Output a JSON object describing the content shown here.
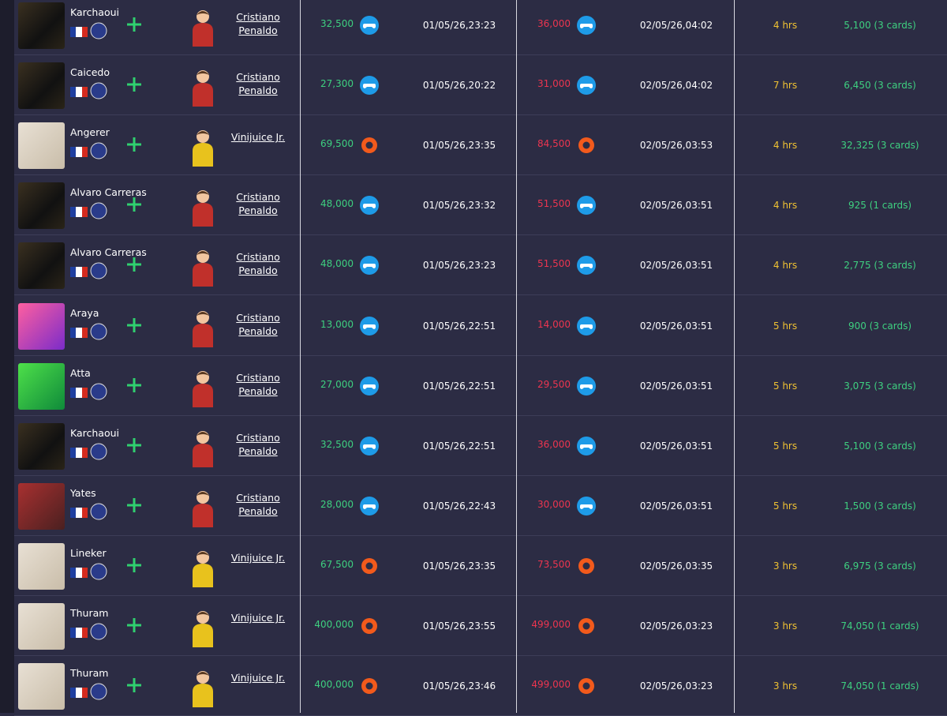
{
  "table": {
    "rows": [
      {
        "player": "Karchaoui",
        "owner": "Cristiano Penaldo",
        "shirt": "#c0302b",
        "buy_price": "32,500",
        "buy_icon": "controller",
        "buy_date": "01/05/26,23:23",
        "sell_price": "36,000",
        "sell_icon": "controller",
        "sell_date": "02/05/26,04:02",
        "time": "4 hrs",
        "profit": "5,100 (3 cards)"
      },
      {
        "player": "Caicedo",
        "owner": "Cristiano Penaldo",
        "shirt": "#c0302b",
        "buy_price": "27,300",
        "buy_icon": "controller",
        "buy_date": "01/05/26,20:22",
        "sell_price": "31,000",
        "sell_icon": "controller",
        "sell_date": "02/05/26,04:02",
        "time": "7 hrs",
        "profit": "6,450 (3 cards)"
      },
      {
        "player": "Angerer",
        "owner": "Vinijuice Jr.",
        "shirt": "#e8c21d",
        "buy_price": "69,500",
        "buy_icon": "origin",
        "buy_date": "01/05/26,23:35",
        "sell_price": "84,500",
        "sell_icon": "origin",
        "sell_date": "02/05/26,03:53",
        "time": "4 hrs",
        "profit": "32,325 (3 cards)"
      },
      {
        "player": "Alvaro Carreras",
        "owner": "Cristiano Penaldo",
        "shirt": "#c0302b",
        "buy_price": "48,000",
        "buy_icon": "controller",
        "buy_date": "01/05/26,23:32",
        "sell_price": "51,500",
        "sell_icon": "controller",
        "sell_date": "02/05/26,03:51",
        "time": "4 hrs",
        "profit": "925 (1 cards)"
      },
      {
        "player": "Alvaro Carreras",
        "owner": "Cristiano Penaldo",
        "shirt": "#c0302b",
        "buy_price": "48,000",
        "buy_icon": "controller",
        "buy_date": "01/05/26,23:23",
        "sell_price": "51,500",
        "sell_icon": "controller",
        "sell_date": "02/05/26,03:51",
        "time": "4 hrs",
        "profit": "2,775 (3 cards)"
      },
      {
        "player": "Araya",
        "owner": "Cristiano Penaldo",
        "shirt": "#c0302b",
        "buy_price": "13,000",
        "buy_icon": "controller",
        "buy_date": "01/05/26,22:51",
        "sell_price": "14,000",
        "sell_icon": "controller",
        "sell_date": "02/05/26,03:51",
        "time": "5 hrs",
        "profit": "900 (3 cards)"
      },
      {
        "player": "Atta",
        "owner": "Cristiano Penaldo",
        "shirt": "#c0302b",
        "buy_price": "27,000",
        "buy_icon": "controller",
        "buy_date": "01/05/26,22:51",
        "sell_price": "29,500",
        "sell_icon": "controller",
        "sell_date": "02/05/26,03:51",
        "time": "5 hrs",
        "profit": "3,075 (3 cards)"
      },
      {
        "player": "Karchaoui",
        "owner": "Cristiano Penaldo",
        "shirt": "#c0302b",
        "buy_price": "32,500",
        "buy_icon": "controller",
        "buy_date": "01/05/26,22:51",
        "sell_price": "36,000",
        "sell_icon": "controller",
        "sell_date": "02/05/26,03:51",
        "time": "5 hrs",
        "profit": "5,100 (3 cards)"
      },
      {
        "player": "Yates",
        "owner": "Cristiano Penaldo",
        "shirt": "#c0302b",
        "buy_price": "28,000",
        "buy_icon": "controller",
        "buy_date": "01/05/26,22:43",
        "sell_price": "30,000",
        "sell_icon": "controller",
        "sell_date": "02/05/26,03:51",
        "time": "5 hrs",
        "profit": "1,500 (3 cards)"
      },
      {
        "player": "Lineker",
        "owner": "Vinijuice Jr.",
        "shirt": "#e8c21d",
        "buy_price": "67,500",
        "buy_icon": "origin",
        "buy_date": "01/05/26,23:35",
        "sell_price": "73,500",
        "sell_icon": "origin",
        "sell_date": "02/05/26,03:35",
        "time": "3 hrs",
        "profit": "6,975 (3 cards)"
      },
      {
        "player": "Thuram",
        "owner": "Vinijuice Jr.",
        "shirt": "#e8c21d",
        "buy_price": "400,000",
        "buy_icon": "origin",
        "buy_date": "01/05/26,23:55",
        "sell_price": "499,000",
        "sell_icon": "origin",
        "sell_date": "02/05/26,03:23",
        "time": "3 hrs",
        "profit": "74,050 (1 cards)"
      },
      {
        "player": "Thuram",
        "owner": "Vinijuice Jr.",
        "shirt": "#e8c21d",
        "buy_price": "400,000",
        "buy_icon": "origin",
        "buy_date": "01/05/26,23:46",
        "sell_price": "499,000",
        "sell_icon": "origin",
        "sell_date": "02/05/26,03:23",
        "time": "3 hrs",
        "profit": "74,050 (1 cards)"
      }
    ]
  }
}
